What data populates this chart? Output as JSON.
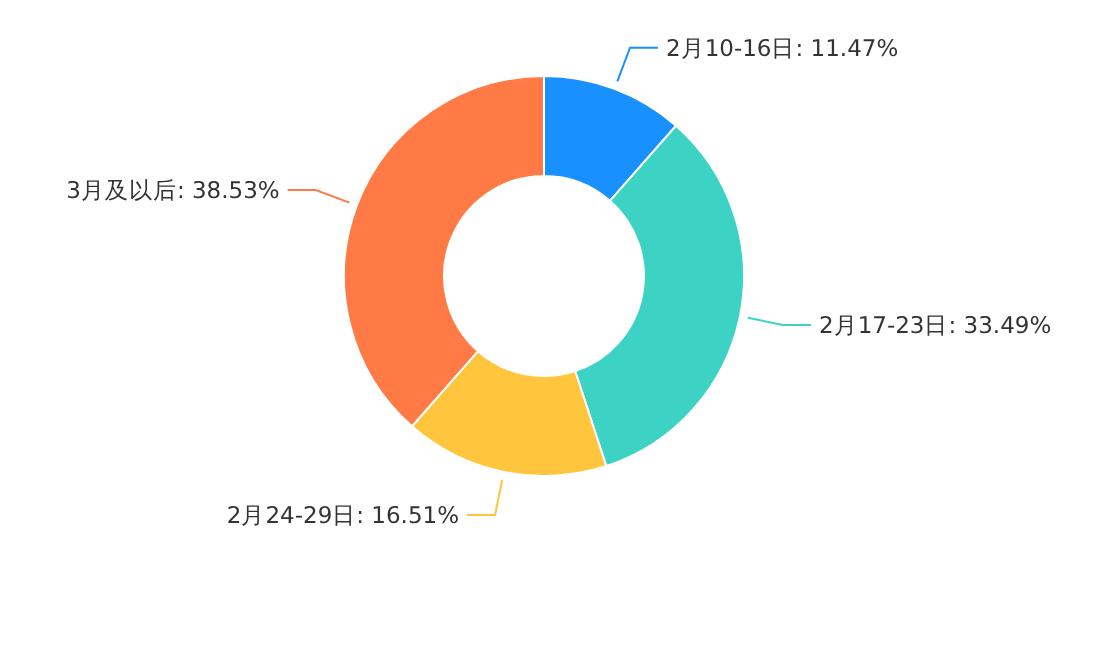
{
  "chart_data": {
    "type": "donut",
    "categories": [
      "2月10-16日",
      "2月17-23日",
      "2月24-29日",
      "3月及以后"
    ],
    "values": [
      11.47,
      33.49,
      16.51,
      38.53
    ],
    "value_labels": [
      "11.47%",
      "33.49%",
      "16.51%",
      "38.53%"
    ],
    "colors": [
      "#1890ff",
      "#3cd3c5",
      "#ffc53d",
      "#ff7a45"
    ]
  }
}
